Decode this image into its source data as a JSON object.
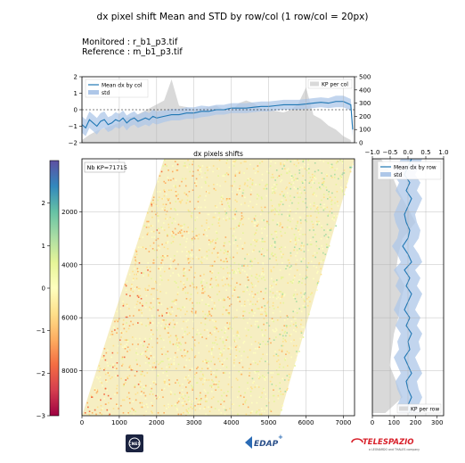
{
  "title": "dx pixel shift Mean and STD by row/col (1 row/col = 20px)",
  "monitored": "Monitored : r_b1_p3.tif",
  "reference": "Reference : m_b1_p3.tif",
  "colors": {
    "mean_line": "#1f77b4",
    "std_fill": "#aec7e8",
    "kp_fill": "#d9d9d9",
    "colormap": [
      "#9e0142",
      "#d53e4f",
      "#f46d43",
      "#fdae61",
      "#fee08b",
      "#ffffbf",
      "#e6f598",
      "#abdda4",
      "#66c2a5",
      "#3288bd",
      "#5e4fa2"
    ]
  },
  "chart_data": [
    {
      "type": "line",
      "panel": "top",
      "legend": [
        "Mean dx by col",
        "std",
        "KP per col"
      ],
      "legend_placement": "top-left / top-right",
      "x_range": [
        0,
        7300
      ],
      "ylim": [
        -2,
        2
      ],
      "yticks": [
        "2",
        "1",
        "0",
        "−1",
        "−2"
      ],
      "y2lim": [
        0,
        500
      ],
      "y2ticks": [
        "500",
        "400",
        "300",
        "200",
        "100",
        "0"
      ],
      "grid": true,
      "series": [
        {
          "name": "Mean dx by col",
          "x": [
            0,
            100,
            200,
            300,
            400,
            500,
            600,
            700,
            800,
            900,
            1000,
            1100,
            1200,
            1300,
            1400,
            1500,
            1600,
            1700,
            1800,
            1900,
            2000,
            2200,
            2400,
            2600,
            2800,
            3000,
            3200,
            3400,
            3600,
            3800,
            4000,
            4200,
            4400,
            4600,
            4800,
            5000,
            5200,
            5400,
            5600,
            5800,
            6000,
            6200,
            6400,
            6600,
            6800,
            7000,
            7100,
            7200,
            7250
          ],
          "values": [
            -0.9,
            -1.1,
            -0.6,
            -0.8,
            -1.0,
            -0.7,
            -0.6,
            -0.9,
            -0.8,
            -0.6,
            -0.7,
            -0.5,
            -0.8,
            -0.6,
            -0.5,
            -0.7,
            -0.6,
            -0.5,
            -0.6,
            -0.4,
            -0.5,
            -0.4,
            -0.3,
            -0.3,
            -0.2,
            -0.2,
            -0.1,
            -0.1,
            0.0,
            0.0,
            0.1,
            0.1,
            0.1,
            0.15,
            0.2,
            0.2,
            0.25,
            0.3,
            0.3,
            0.3,
            0.35,
            0.4,
            0.45,
            0.4,
            0.5,
            0.5,
            0.4,
            0.3,
            -1.2
          ]
        },
        {
          "name": "std",
          "x": [
            0,
            300,
            600,
            900,
            1200,
            1500,
            1800,
            2100,
            2400,
            2700,
            3000,
            3300,
            3600,
            3900,
            4200,
            4500,
            4800,
            5100,
            5400,
            5700,
            6000,
            6300,
            6600,
            6900,
            7200
          ],
          "values": [
            0.5,
            0.5,
            0.45,
            0.45,
            0.4,
            0.4,
            0.4,
            0.35,
            0.35,
            0.35,
            0.35,
            0.3,
            0.3,
            0.3,
            0.3,
            0.3,
            0.3,
            0.3,
            0.3,
            0.3,
            0.3,
            0.3,
            0.35,
            0.35,
            0.5
          ]
        },
        {
          "name": "KP per col",
          "axis": "right",
          "x": [
            0,
            200,
            400,
            600,
            800,
            1000,
            1200,
            1400,
            1600,
            1800,
            2000,
            2200,
            2400,
            2600,
            2800,
            3000,
            3200,
            3400,
            3600,
            3800,
            4000,
            4200,
            4400,
            4600,
            4800,
            5000,
            5200,
            5400,
            5600,
            5800,
            6000,
            6200,
            6400,
            6600,
            6800,
            7000,
            7200
          ],
          "values": [
            20,
            60,
            90,
            110,
            130,
            150,
            190,
            200,
            230,
            260,
            290,
            320,
            480,
            280,
            270,
            250,
            260,
            270,
            280,
            250,
            240,
            300,
            320,
            300,
            260,
            250,
            240,
            230,
            250,
            300,
            420,
            210,
            180,
            130,
            100,
            50,
            20
          ]
        }
      ]
    },
    {
      "type": "heatmap",
      "panel": "main",
      "title": "dx pixels shifts",
      "annotation": "Nb KP=71715",
      "xlim": [
        0,
        7300
      ],
      "xticks": [
        "0",
        "1000",
        "2000",
        "3000",
        "4000",
        "5000",
        "6000",
        "7000"
      ],
      "ylim": [
        9700,
        0
      ],
      "yticks": [
        "2000",
        "4000",
        "6000",
        "8000"
      ],
      "grid": true,
      "footprint_corners": {
        "top_left": [
          2200,
          0
        ],
        "top_right": [
          7300,
          0
        ],
        "bottom_right": [
          5300,
          9700
        ],
        "bottom_left": [
          0,
          9700
        ]
      },
      "colorbar": {
        "range": [
          -3,
          3
        ],
        "ticks": [
          "2",
          "1",
          "0",
          "−1",
          "−2",
          "−3"
        ]
      }
    },
    {
      "type": "line",
      "panel": "right",
      "legend": [
        "Mean dx by row",
        "std",
        "KP per row"
      ],
      "legend_placement": "top-right / bottom-right",
      "xlim": [
        -1,
        1
      ],
      "xticks": [
        "−1.0",
        "−0.5",
        "0.0",
        "0.5",
        "1.0"
      ],
      "x2lim": [
        0,
        330
      ],
      "x2ticks": [
        "0",
        "100",
        "200",
        "300"
      ],
      "grid": true,
      "series": [
        {
          "name": "Mean dx by row",
          "y": [
            0,
            300,
            600,
            900,
            1200,
            1500,
            1800,
            2100,
            2400,
            2700,
            3000,
            3300,
            3600,
            3900,
            4200,
            4500,
            4800,
            5100,
            5400,
            5700,
            6000,
            6300,
            6600,
            6900,
            7200,
            7500,
            7800,
            8100,
            8400,
            8700,
            9000,
            9300,
            9600
          ],
          "values": [
            0.1,
            0.0,
            -0.1,
            0.05,
            -0.05,
            0.1,
            0.0,
            -0.1,
            -0.05,
            0.05,
            0.0,
            -0.15,
            0.0,
            0.1,
            -0.1,
            0.05,
            -0.05,
            0.1,
            0.0,
            -0.1,
            0.05,
            -0.05,
            0.1,
            0.0,
            0.05,
            -0.1,
            0.0,
            0.1,
            -0.05,
            0.0,
            0.1,
            0.0,
            0.05
          ]
        },
        {
          "name": "std",
          "y": [
            0,
            1200,
            2400,
            3600,
            4800,
            6000,
            7200,
            8400,
            9600
          ],
          "values": [
            0.3,
            0.3,
            0.3,
            0.3,
            0.3,
            0.3,
            0.3,
            0.3,
            0.3
          ]
        },
        {
          "name": "KP per row",
          "axis": "top",
          "y": [
            0,
            600,
            1200,
            1800,
            2400,
            3000,
            3600,
            4200,
            4800,
            5400,
            6000,
            6600,
            7200,
            7800,
            8400,
            9000,
            9600
          ],
          "values": [
            40,
            90,
            120,
            160,
            200,
            140,
            120,
            110,
            150,
            130,
            120,
            100,
            90,
            80,
            110,
            140,
            60
          ]
        }
      ]
    }
  ],
  "logos": {
    "left": "CNES",
    "center": "EDAP",
    "right_name": "TELESPAZIO",
    "right_tagline": "a LEONARDO and THALES company"
  }
}
